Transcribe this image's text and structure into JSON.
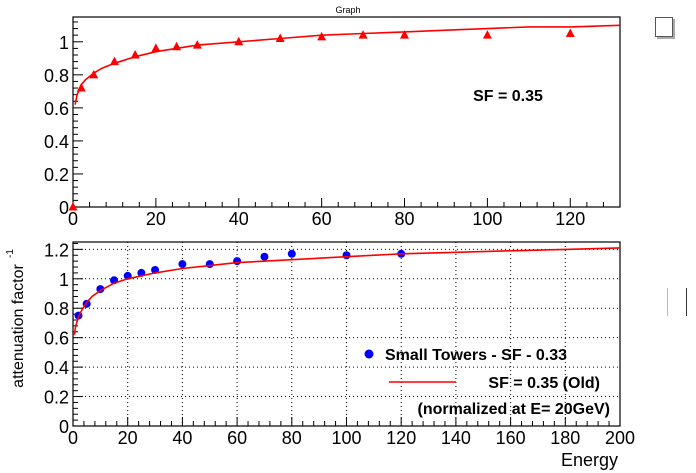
{
  "figure": {
    "title": "Graph",
    "side_widget_icon": "checkbox-icon"
  },
  "chart_data": [
    {
      "type": "scatter",
      "title": "Graph",
      "xlabel": "",
      "ylabel": "",
      "xlim": [
        0,
        132
      ],
      "ylim": [
        0,
        1.15
      ],
      "x_ticks": [
        0,
        20,
        40,
        60,
        80,
        100,
        120
      ],
      "y_ticks": [
        0,
        0.2,
        0.4,
        0.6,
        0.8,
        1
      ],
      "tick_labels_x": [
        "0",
        "20",
        "40",
        "60",
        "80",
        "100",
        "120"
      ],
      "tick_labels_y": [
        "0",
        "0.2",
        "0.4",
        "0.6",
        "0.8",
        "1"
      ],
      "grid": false,
      "annotation": "SF = 0.35",
      "series": [
        {
          "marker": "triangle",
          "color": "#ff0000",
          "x": [
            0,
            2,
            5,
            10,
            15,
            20,
            25,
            30,
            40,
            50,
            60,
            70,
            80,
            100,
            120
          ],
          "y": [
            0.0,
            0.72,
            0.8,
            0.88,
            0.92,
            0.96,
            0.97,
            0.98,
            1.0,
            1.02,
            1.03,
            1.04,
            1.04,
            1.04,
            1.05
          ]
        },
        {
          "line": true,
          "color": "#ff0000",
          "x": [
            0.5,
            1,
            2,
            3,
            5,
            7,
            10,
            15,
            20,
            30,
            40,
            50,
            60,
            70,
            80,
            90,
            100,
            110,
            120,
            132
          ],
          "y": [
            0.62,
            0.68,
            0.74,
            0.77,
            0.81,
            0.84,
            0.87,
            0.91,
            0.94,
            0.98,
            1.0,
            1.02,
            1.04,
            1.05,
            1.06,
            1.07,
            1.08,
            1.09,
            1.09,
            1.1
          ]
        }
      ]
    },
    {
      "type": "scatter",
      "xlabel": "Energy",
      "ylabel": "attenuation factor",
      "ylabel_superscript": "-1",
      "xlim": [
        0,
        200
      ],
      "ylim": [
        0,
        1.25
      ],
      "x_ticks": [
        0,
        20,
        40,
        60,
        80,
        100,
        120,
        140,
        160,
        180,
        200
      ],
      "y_ticks": [
        0,
        0.2,
        0.4,
        0.6,
        0.8,
        1,
        1.2
      ],
      "tick_labels_x": [
        "0",
        "20",
        "40",
        "60",
        "80",
        "100",
        "120",
        "140",
        "160",
        "180",
        "200"
      ],
      "tick_labels_y": [
        "0",
        "0.2",
        "0.4",
        "0.6",
        "0.8",
        "1",
        "1.2"
      ],
      "grid": true,
      "legend_position": "bottom-right",
      "legend_note": "(normalized at E= 20GeV)",
      "series": [
        {
          "name": "Small Towers - SF - 0.33",
          "marker": "circle",
          "color": "#0000ff",
          "x": [
            2,
            5,
            10,
            15,
            20,
            25,
            30,
            40,
            50,
            60,
            70,
            80,
            100,
            120
          ],
          "y": [
            0.75,
            0.83,
            0.93,
            0.99,
            1.02,
            1.04,
            1.06,
            1.1,
            1.1,
            1.12,
            1.15,
            1.17,
            1.16,
            1.17
          ]
        },
        {
          "name": "SF = 0.35 (Old)",
          "line": true,
          "color": "#ff0000",
          "x": [
            0.5,
            1,
            2,
            3,
            5,
            7,
            10,
            15,
            20,
            30,
            40,
            50,
            60,
            80,
            100,
            120,
            140,
            160,
            180,
            200
          ],
          "y": [
            0.62,
            0.68,
            0.74,
            0.78,
            0.84,
            0.88,
            0.92,
            0.97,
            1.0,
            1.04,
            1.07,
            1.09,
            1.11,
            1.13,
            1.15,
            1.17,
            1.18,
            1.19,
            1.2,
            1.21
          ]
        }
      ]
    }
  ]
}
